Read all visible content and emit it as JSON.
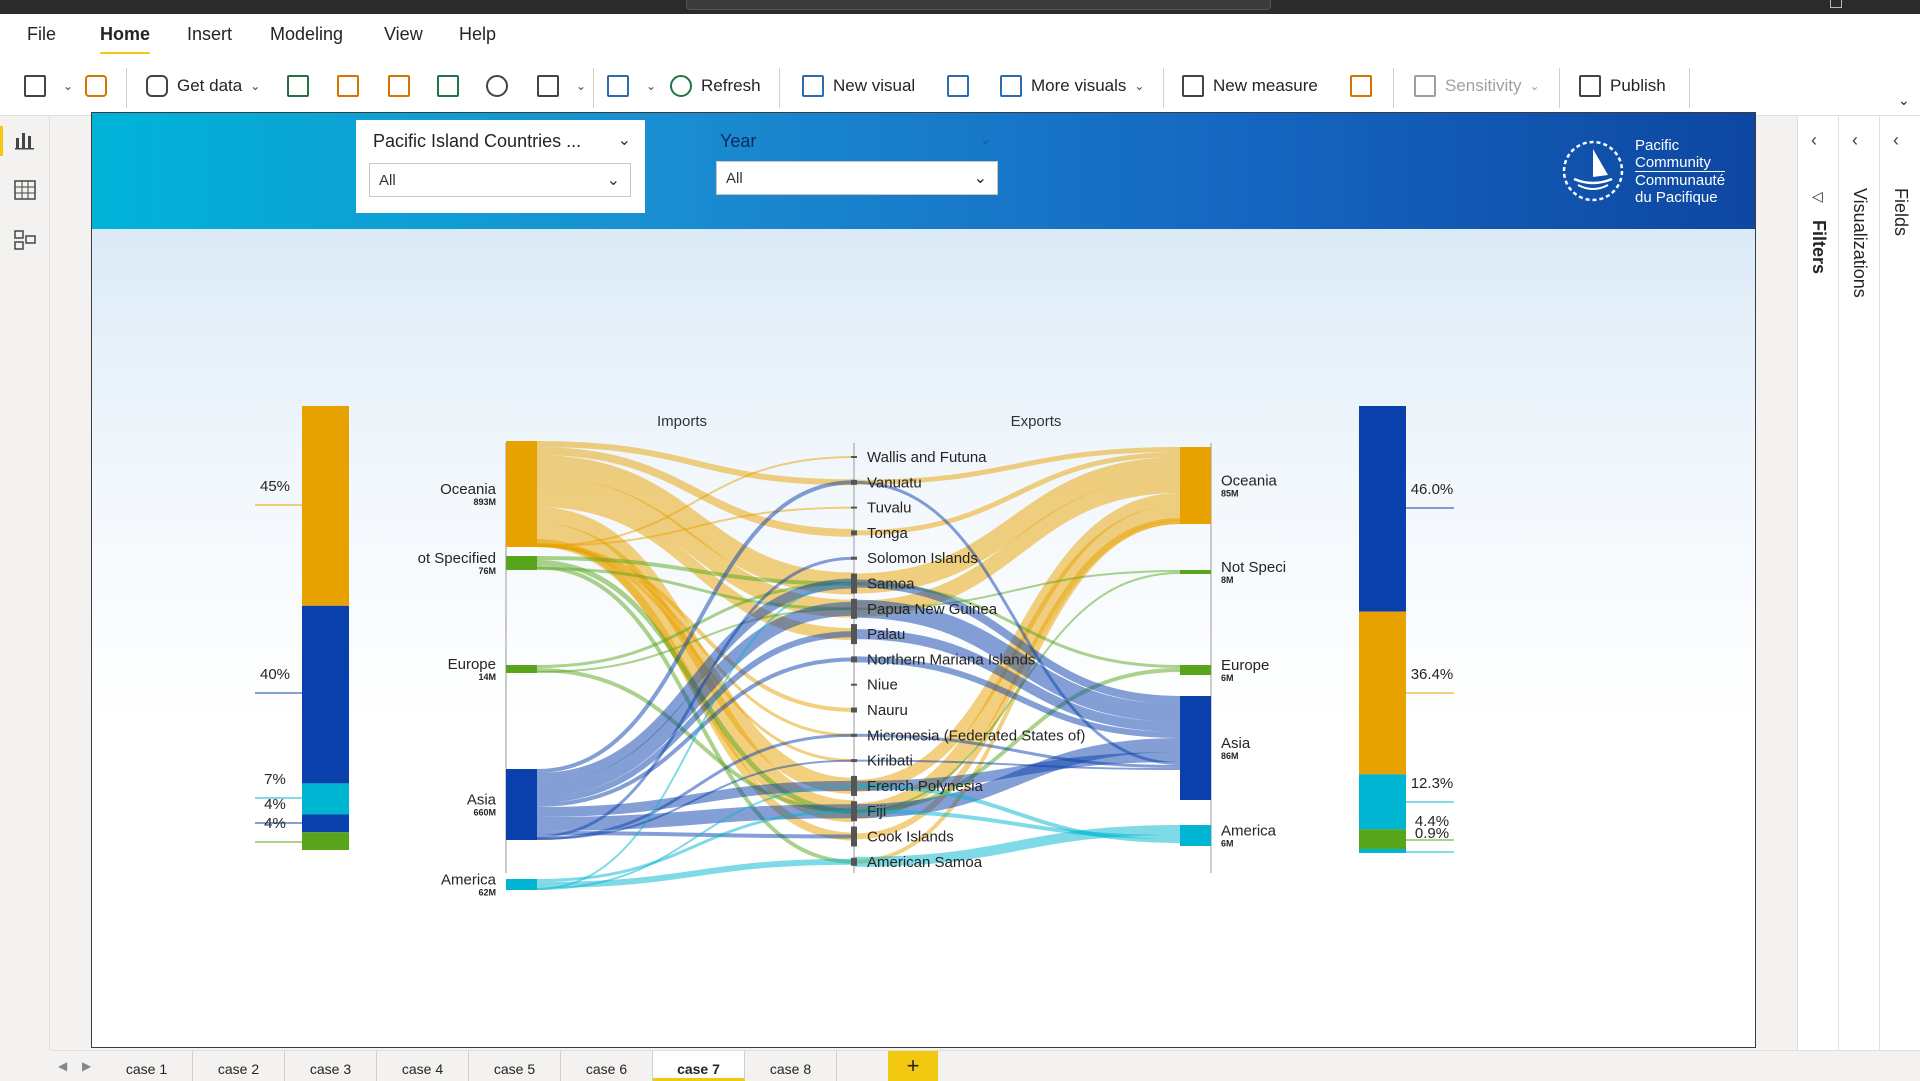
{
  "menu": {
    "items": [
      "File",
      "Home",
      "Insert",
      "Modeling",
      "View",
      "Help"
    ],
    "active": "Home"
  },
  "ribbon": {
    "get_data": "Get data",
    "refresh": "Refresh",
    "new_visual": "New visual",
    "more_visuals": "More visuals",
    "new_measure": "New measure",
    "sensitivity": "Sensitivity",
    "publish": "Publish"
  },
  "slicers": {
    "country": {
      "title": "Pacific Island Countries ...",
      "value": "All"
    },
    "year": {
      "title": "Year",
      "value": "All"
    }
  },
  "logo": {
    "line1": "Pacific",
    "line2": "Community",
    "line3": "Communauté",
    "line4": "du Pacifique"
  },
  "side_panels": {
    "filters": "Filters",
    "visualizations": "Visualizations",
    "fields": "Fields"
  },
  "tabs": [
    "case 1",
    "case 2",
    "case 3",
    "case 4",
    "case 5",
    "case 6",
    "case 7",
    "case 8"
  ],
  "active_tab": "case 7",
  "add_tab": "+",
  "colors": {
    "oceania": "#e8a200",
    "asia": "#0a40ab",
    "america": "#00b5d1",
    "europe": "#58a51c",
    "not_specified": "#58a51c",
    "accent": "#f2c811"
  },
  "chart_data": {
    "type": "sankey",
    "imports_title": "Imports",
    "exports_title": "Exports",
    "import_regions": [
      {
        "name": "Oceania",
        "value_label": "893M"
      },
      {
        "name": "ot Specified",
        "value_label": "76M"
      },
      {
        "name": "Europe",
        "value_label": "14M"
      },
      {
        "name": "Asia",
        "value_label": "660M"
      },
      {
        "name": "America",
        "value_label": "62M"
      }
    ],
    "export_regions": [
      {
        "name": "Oceania",
        "value_label": "85M"
      },
      {
        "name": "Not Speci",
        "value_label": "8M"
      },
      {
        "name": "Europe",
        "value_label": "6M"
      },
      {
        "name": "Asia",
        "value_label": "86M"
      },
      {
        "name": "America",
        "value_label": "6M"
      }
    ],
    "countries": [
      "Wallis and Futuna",
      "Vanuatu",
      "Tuvalu",
      "Tonga",
      "Solomon Islands",
      "Samoa",
      "Papua New Guinea",
      "Palau",
      "Northern Mariana Islands",
      "Niue",
      "Nauru",
      "Micronesia (Federated States of)",
      "Kiribati",
      "French Polynesia",
      "Fiji",
      "Cook Islands",
      "American Samoa"
    ],
    "imports_share": [
      {
        "region": "Oceania",
        "pct": 45,
        "label": "45%"
      },
      {
        "region": "Asia",
        "pct": 40,
        "label": "40%"
      },
      {
        "region": "America",
        "pct": 7,
        "label": "7%"
      },
      {
        "region": "Asia (dark)",
        "pct": 4,
        "label": "4%"
      },
      {
        "region": "Europe",
        "pct": 4,
        "label": "4%"
      }
    ],
    "exports_share": [
      {
        "region": "Asia",
        "pct": 46.0,
        "label": "46.0%"
      },
      {
        "region": "Oceania",
        "pct": 36.4,
        "label": "36.4%"
      },
      {
        "region": "America",
        "pct": 12.3,
        "label": "12.3%"
      },
      {
        "region": "Europe",
        "pct": 4.4,
        "label": "4.4%"
      },
      {
        "region": "Other",
        "pct": 0.9,
        "label": "0.9%"
      }
    ]
  }
}
